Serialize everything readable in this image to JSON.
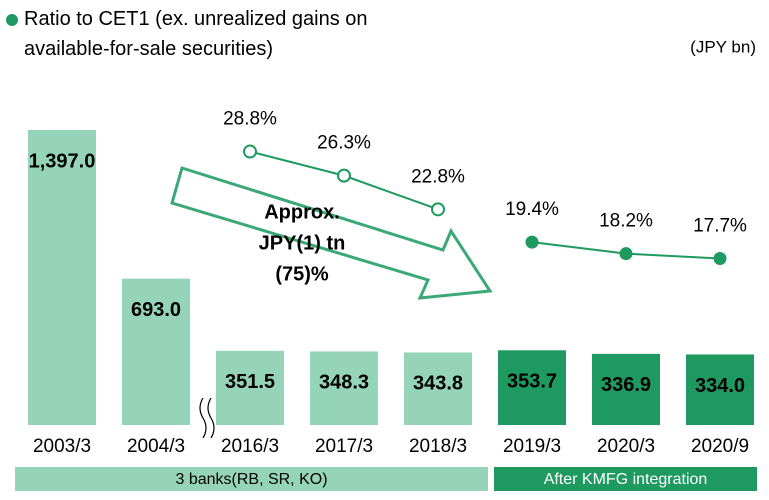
{
  "chart_data": {
    "type": "bar",
    "categories": [
      "2003/3",
      "2004/3",
      "2016/3",
      "2017/3",
      "2018/3",
      "2019/3",
      "2020/3",
      "2020/9"
    ],
    "values": [
      1397.0,
      693.0,
      351.5,
      348.3,
      343.8,
      353.7,
      336.9,
      334.0
    ],
    "value_labels": [
      "1,397.0",
      "693.0",
      "351.5",
      "348.3",
      "343.8",
      "353.7",
      "336.9",
      "334.0"
    ],
    "ylim": [
      0,
      1397
    ],
    "unit_label": "(JPY bn)",
    "line": {
      "name": "Ratio to CET1 (ex. unrealized gains on available-for-sale securities)",
      "axis": "y2",
      "color": "#1e9a60",
      "values": [
        null,
        null,
        28.8,
        26.3,
        22.8,
        19.4,
        18.2,
        17.7
      ],
      "value_labels": [
        null,
        null,
        "28.8%",
        "26.3%",
        "22.8%",
        "19.4%",
        "18.2%",
        "17.7%"
      ]
    },
    "y2lim": [
      0,
      30
    ],
    "groups": [
      {
        "label": "3 banks(RB, SR, KO)",
        "first": "2003/3",
        "last": "2018/3",
        "color": "#95d4b8",
        "marker": "open"
      },
      {
        "label": "After KMFG integration",
        "first": "2019/3",
        "last": "2020/9",
        "color": "#1e9a60",
        "marker": "filled"
      }
    ],
    "annotation_lines": [
      "Approx.",
      "JPY(1) tn",
      "(75)%"
    ]
  }
}
